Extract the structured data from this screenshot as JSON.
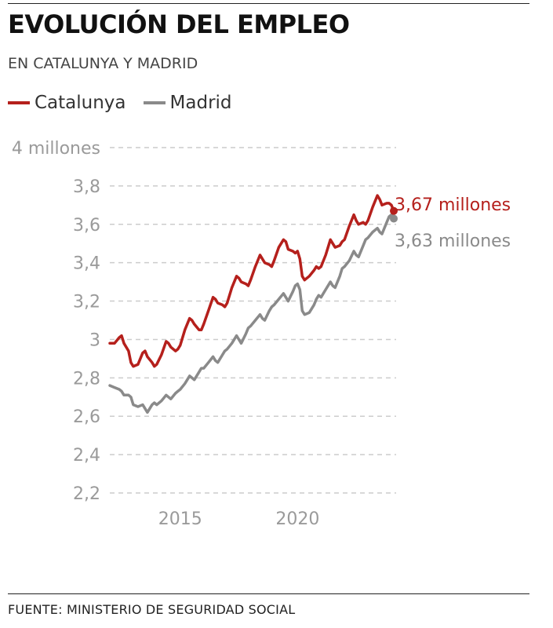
{
  "header": {
    "title": "EVOLUCIÓN DEL EMPLEO",
    "subtitle": "EN CATALUNYA Y MADRID"
  },
  "footer": {
    "source": "FUENTE: MINISTERIO DE SEGURIDAD SOCIAL"
  },
  "colors": {
    "catalunya": "#b5201c",
    "madrid": "#8a8a8a",
    "grid": "#cccccc",
    "tick_text": "#9a9a9a"
  },
  "chart_data": {
    "type": "line",
    "title": "EVOLUCIÓN DEL EMPLEO",
    "subtitle": "EN CATALUNYA Y MADRID",
    "legend_position": "top-left",
    "grid": true,
    "ylim": [
      2.2,
      4.0
    ],
    "xlim": [
      2012,
      2024.2
    ],
    "y_ticks": [
      {
        "value": 4.0,
        "label": "4 millones"
      },
      {
        "value": 3.8,
        "label": "3,8"
      },
      {
        "value": 3.6,
        "label": "3,6"
      },
      {
        "value": 3.4,
        "label": "3,4"
      },
      {
        "value": 3.2,
        "label": "3,2"
      },
      {
        "value": 3.0,
        "label": "3"
      },
      {
        "value": 2.8,
        "label": "2,8"
      },
      {
        "value": 2.6,
        "label": "2,6"
      },
      {
        "value": 2.4,
        "label": "2,4"
      },
      {
        "value": 2.2,
        "label": "2,2"
      }
    ],
    "x_ticks": [
      {
        "value": 2015,
        "label": "2015"
      },
      {
        "value": 2020,
        "label": "2020"
      }
    ],
    "series": [
      {
        "name": "Catalunya",
        "end_label": "3,67 millones",
        "points": [
          [
            2012.0,
            2.98
          ],
          [
            2012.2,
            2.98
          ],
          [
            2012.4,
            3.01
          ],
          [
            2012.5,
            3.02
          ],
          [
            2012.6,
            2.98
          ],
          [
            2012.8,
            2.94
          ],
          [
            2012.9,
            2.88
          ],
          [
            2013.0,
            2.86
          ],
          [
            2013.2,
            2.87
          ],
          [
            2013.4,
            2.93
          ],
          [
            2013.5,
            2.94
          ],
          [
            2013.6,
            2.91
          ],
          [
            2013.8,
            2.88
          ],
          [
            2013.9,
            2.86
          ],
          [
            2014.0,
            2.87
          ],
          [
            2014.2,
            2.92
          ],
          [
            2014.4,
            2.99
          ],
          [
            2014.5,
            2.98
          ],
          [
            2014.6,
            2.96
          ],
          [
            2014.8,
            2.94
          ],
          [
            2014.9,
            2.95
          ],
          [
            2015.0,
            2.97
          ],
          [
            2015.2,
            3.05
          ],
          [
            2015.4,
            3.11
          ],
          [
            2015.5,
            3.1
          ],
          [
            2015.6,
            3.08
          ],
          [
            2015.8,
            3.05
          ],
          [
            2015.9,
            3.05
          ],
          [
            2016.0,
            3.08
          ],
          [
            2016.2,
            3.15
          ],
          [
            2016.4,
            3.22
          ],
          [
            2016.5,
            3.21
          ],
          [
            2016.6,
            3.19
          ],
          [
            2016.8,
            3.18
          ],
          [
            2016.9,
            3.17
          ],
          [
            2017.0,
            3.19
          ],
          [
            2017.2,
            3.27
          ],
          [
            2017.4,
            3.33
          ],
          [
            2017.5,
            3.32
          ],
          [
            2017.6,
            3.3
          ],
          [
            2017.8,
            3.29
          ],
          [
            2017.9,
            3.28
          ],
          [
            2018.0,
            3.31
          ],
          [
            2018.2,
            3.38
          ],
          [
            2018.4,
            3.44
          ],
          [
            2018.5,
            3.42
          ],
          [
            2018.6,
            3.4
          ],
          [
            2018.8,
            3.39
          ],
          [
            2018.9,
            3.38
          ],
          [
            2019.0,
            3.41
          ],
          [
            2019.2,
            3.48
          ],
          [
            2019.4,
            3.52
          ],
          [
            2019.5,
            3.51
          ],
          [
            2019.6,
            3.47
          ],
          [
            2019.8,
            3.46
          ],
          [
            2019.9,
            3.45
          ],
          [
            2020.0,
            3.46
          ],
          [
            2020.1,
            3.42
          ],
          [
            2020.2,
            3.33
          ],
          [
            2020.3,
            3.31
          ],
          [
            2020.5,
            3.33
          ],
          [
            2020.7,
            3.36
          ],
          [
            2020.8,
            3.38
          ],
          [
            2020.9,
            3.37
          ],
          [
            2021.0,
            3.38
          ],
          [
            2021.2,
            3.44
          ],
          [
            2021.4,
            3.52
          ],
          [
            2021.5,
            3.5
          ],
          [
            2021.6,
            3.48
          ],
          [
            2021.8,
            3.49
          ],
          [
            2021.9,
            3.51
          ],
          [
            2022.0,
            3.52
          ],
          [
            2022.2,
            3.59
          ],
          [
            2022.4,
            3.65
          ],
          [
            2022.5,
            3.62
          ],
          [
            2022.6,
            3.6
          ],
          [
            2022.8,
            3.61
          ],
          [
            2022.9,
            3.6
          ],
          [
            2023.0,
            3.62
          ],
          [
            2023.2,
            3.69
          ],
          [
            2023.4,
            3.75
          ],
          [
            2023.5,
            3.73
          ],
          [
            2023.6,
            3.7
          ],
          [
            2023.8,
            3.71
          ],
          [
            2023.9,
            3.71
          ],
          [
            2024.0,
            3.7
          ],
          [
            2024.1,
            3.67
          ]
        ]
      },
      {
        "name": "Madrid",
        "end_label": "3,63 millones",
        "points": [
          [
            2012.0,
            2.76
          ],
          [
            2012.2,
            2.75
          ],
          [
            2012.4,
            2.74
          ],
          [
            2012.5,
            2.73
          ],
          [
            2012.6,
            2.71
          ],
          [
            2012.8,
            2.71
          ],
          [
            2012.9,
            2.7
          ],
          [
            2013.0,
            2.66
          ],
          [
            2013.2,
            2.65
          ],
          [
            2013.4,
            2.66
          ],
          [
            2013.5,
            2.64
          ],
          [
            2013.6,
            2.62
          ],
          [
            2013.8,
            2.66
          ],
          [
            2013.9,
            2.67
          ],
          [
            2014.0,
            2.66
          ],
          [
            2014.2,
            2.68
          ],
          [
            2014.4,
            2.71
          ],
          [
            2014.5,
            2.7
          ],
          [
            2014.6,
            2.69
          ],
          [
            2014.8,
            2.72
          ],
          [
            2014.9,
            2.73
          ],
          [
            2015.0,
            2.74
          ],
          [
            2015.2,
            2.77
          ],
          [
            2015.4,
            2.81
          ],
          [
            2015.5,
            2.8
          ],
          [
            2015.6,
            2.79
          ],
          [
            2015.8,
            2.83
          ],
          [
            2015.9,
            2.85
          ],
          [
            2016.0,
            2.85
          ],
          [
            2016.2,
            2.88
          ],
          [
            2016.4,
            2.91
          ],
          [
            2016.5,
            2.89
          ],
          [
            2016.6,
            2.88
          ],
          [
            2016.8,
            2.92
          ],
          [
            2016.9,
            2.94
          ],
          [
            2017.0,
            2.95
          ],
          [
            2017.2,
            2.98
          ],
          [
            2017.4,
            3.02
          ],
          [
            2017.5,
            3.0
          ],
          [
            2017.6,
            2.98
          ],
          [
            2017.8,
            3.03
          ],
          [
            2017.9,
            3.06
          ],
          [
            2018.0,
            3.07
          ],
          [
            2018.2,
            3.1
          ],
          [
            2018.4,
            3.13
          ],
          [
            2018.5,
            3.11
          ],
          [
            2018.6,
            3.1
          ],
          [
            2018.8,
            3.15
          ],
          [
            2018.9,
            3.17
          ],
          [
            2019.0,
            3.18
          ],
          [
            2019.2,
            3.21
          ],
          [
            2019.4,
            3.24
          ],
          [
            2019.5,
            3.22
          ],
          [
            2019.6,
            3.2
          ],
          [
            2019.8,
            3.25
          ],
          [
            2019.9,
            3.28
          ],
          [
            2020.0,
            3.29
          ],
          [
            2020.1,
            3.26
          ],
          [
            2020.2,
            3.15
          ],
          [
            2020.3,
            3.13
          ],
          [
            2020.5,
            3.14
          ],
          [
            2020.7,
            3.18
          ],
          [
            2020.8,
            3.21
          ],
          [
            2020.9,
            3.23
          ],
          [
            2021.0,
            3.22
          ],
          [
            2021.2,
            3.26
          ],
          [
            2021.4,
            3.3
          ],
          [
            2021.5,
            3.28
          ],
          [
            2021.6,
            3.27
          ],
          [
            2021.8,
            3.33
          ],
          [
            2021.9,
            3.37
          ],
          [
            2022.0,
            3.38
          ],
          [
            2022.2,
            3.41
          ],
          [
            2022.4,
            3.46
          ],
          [
            2022.5,
            3.44
          ],
          [
            2022.6,
            3.43
          ],
          [
            2022.8,
            3.49
          ],
          [
            2022.9,
            3.52
          ],
          [
            2023.0,
            3.53
          ],
          [
            2023.2,
            3.56
          ],
          [
            2023.4,
            3.58
          ],
          [
            2023.5,
            3.56
          ],
          [
            2023.6,
            3.55
          ],
          [
            2023.8,
            3.61
          ],
          [
            2023.9,
            3.64
          ],
          [
            2024.0,
            3.65
          ],
          [
            2024.1,
            3.63
          ]
        ]
      }
    ]
  }
}
